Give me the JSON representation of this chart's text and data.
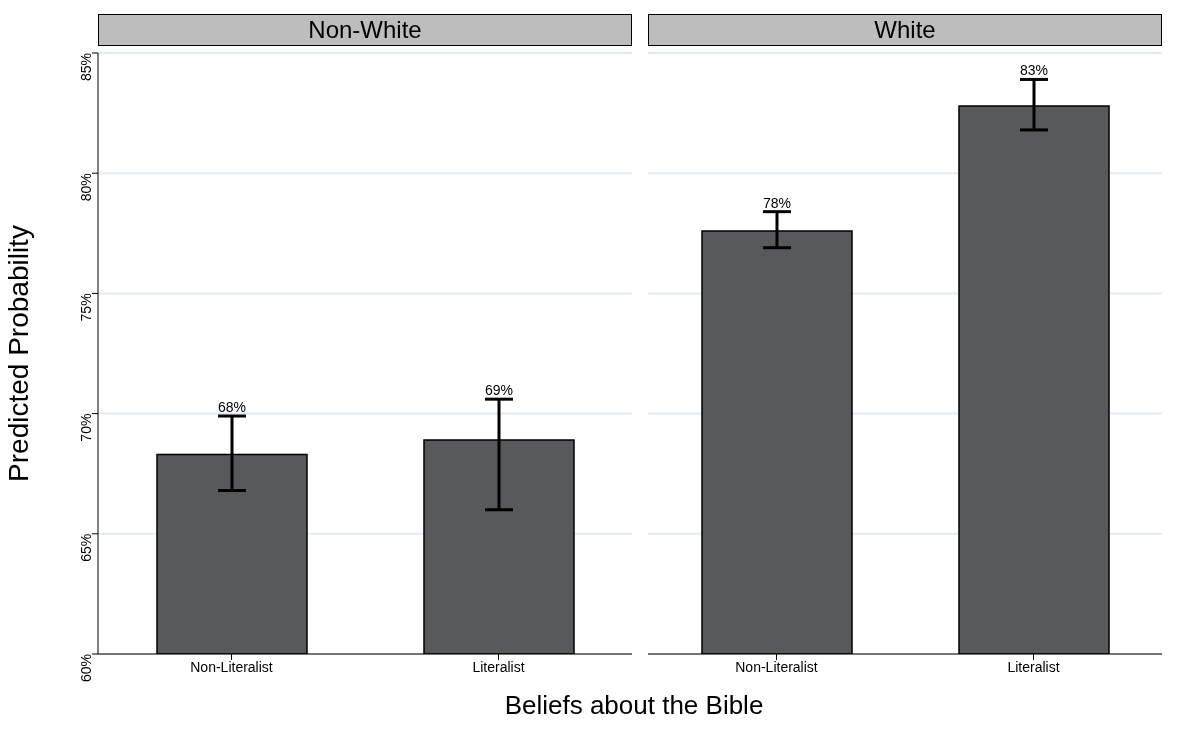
{
  "chart_data": [
    {
      "type": "bar",
      "title": "Non-White",
      "ylabel": "Predicted Probability",
      "xlabel": "Beliefs about the Bible",
      "categories": [
        "Non-Literalist",
        "Literalist"
      ],
      "values": [
        68.3,
        68.9
      ],
      "errors": [
        [
          66.8,
          69.9
        ],
        [
          66.0,
          70.6
        ]
      ],
      "value_labels": [
        "68%",
        "69%"
      ],
      "color": "#58595b",
      "ylim": [
        60,
        85
      ],
      "yticks": [
        {
          "value": 60,
          "label": "60%"
        },
        {
          "value": 65,
          "label": "65%"
        },
        {
          "value": 70,
          "label": "70%"
        },
        {
          "value": 75,
          "label": "75%"
        },
        {
          "value": 80,
          "label": "80%"
        },
        {
          "value": 85,
          "label": "85%"
        }
      ],
      "grid": "y"
    },
    {
      "type": "bar",
      "title": "White",
      "categories": [
        "Non-Literalist",
        "Literalist"
      ],
      "values": [
        77.6,
        82.8
      ],
      "errors": [
        [
          76.9,
          78.4
        ],
        [
          81.8,
          83.9
        ]
      ],
      "value_labels": [
        "78%",
        "83%"
      ],
      "color": "#58595b",
      "ylim": [
        60,
        85
      ],
      "yticks": [
        {
          "value": 60,
          "label": null
        },
        {
          "value": 65,
          "label": null
        },
        {
          "value": 70,
          "label": null
        },
        {
          "value": 75,
          "label": null
        },
        {
          "value": 80,
          "label": null
        },
        {
          "value": 85,
          "label": null
        }
      ],
      "grid": "y",
      "tick_labels": "x"
    }
  ]
}
